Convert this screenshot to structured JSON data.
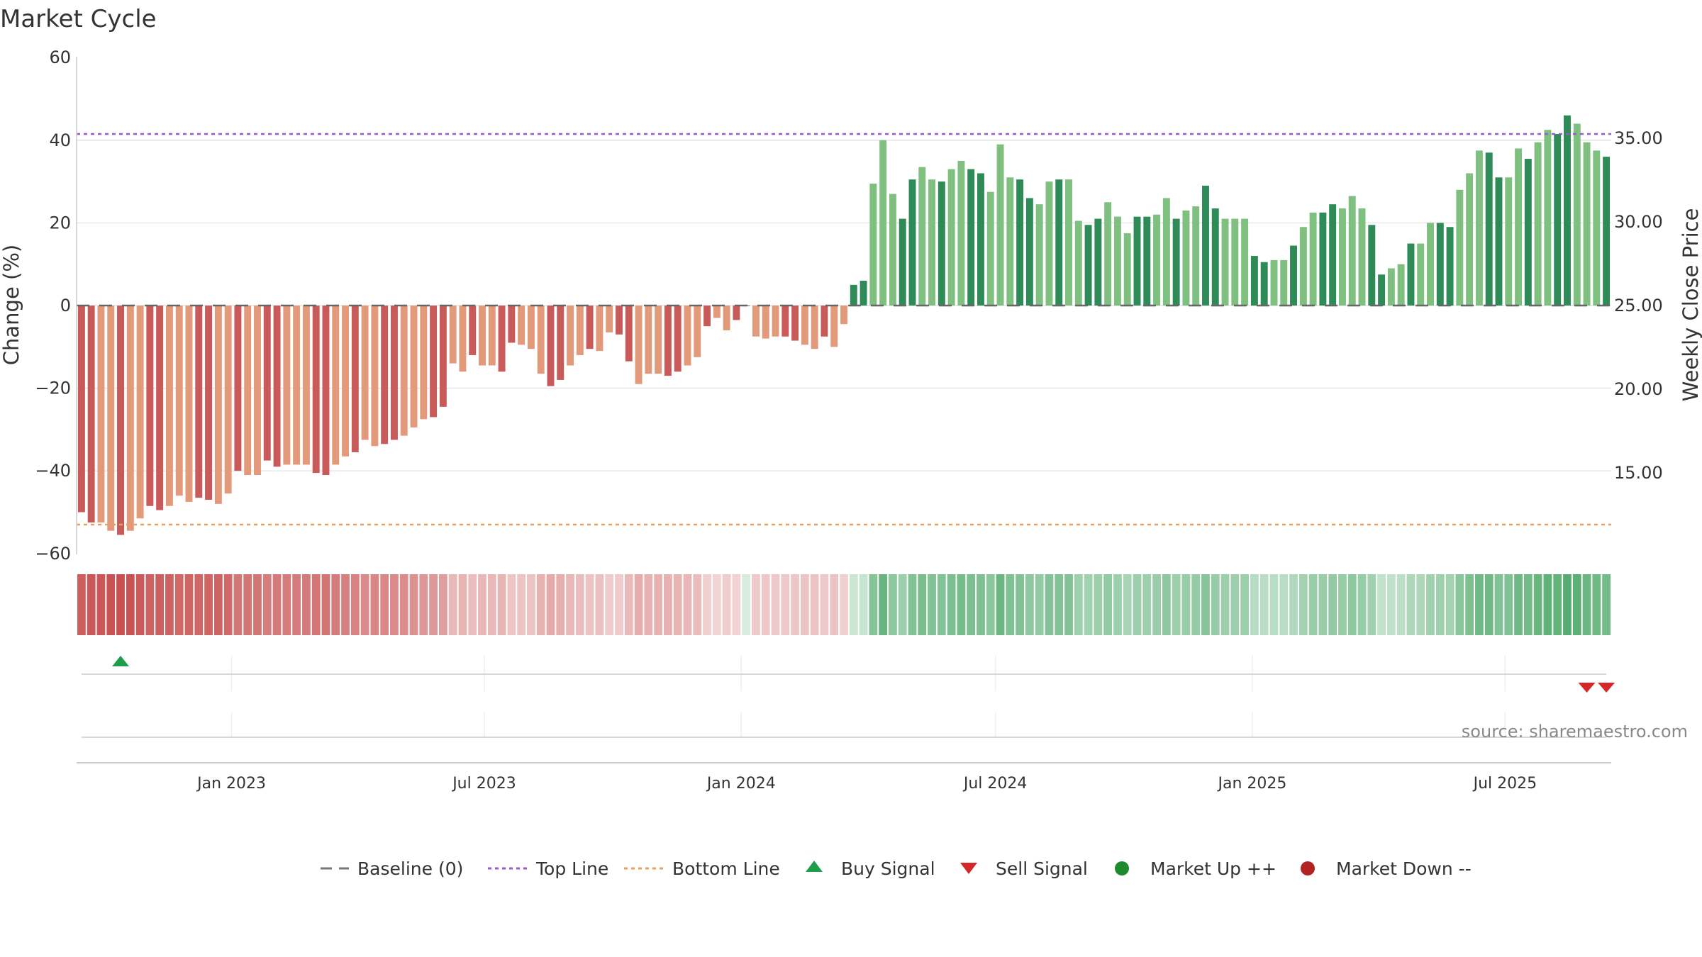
{
  "chart_data": {
    "type": "bar",
    "title": "Market Cycle",
    "y_left_label": "Change (%)",
    "y_right_label": "Weekly Close Price",
    "y_left_ticks": [
      "60",
      "40",
      "20",
      "0",
      "−20",
      "−40",
      "−60"
    ],
    "y_right_ticks": [
      "35.00",
      "30.00",
      "25.00",
      "20.00",
      "15.00"
    ],
    "ylim_left": [
      -60,
      60
    ],
    "x_ticks": [
      "Jan 2023",
      "Jul 2023",
      "Jan 2024",
      "Jul 2024",
      "Jan 2025",
      "Jul 2025"
    ],
    "top_line": 41.5,
    "bottom_line": -53,
    "grid": true,
    "start_week": "2022-09-12",
    "values": [
      -50,
      -52.5,
      -52.5,
      -54.5,
      -55.5,
      -54.5,
      -51.5,
      -48.5,
      -49.5,
      -48.5,
      -46,
      -47.5,
      -46.5,
      -47,
      -48,
      -45.5,
      -40,
      -41,
      -41,
      -37.5,
      -39,
      -38.5,
      -38.5,
      -38.5,
      -40.5,
      -41,
      -38.5,
      -36.5,
      -35.5,
      -32.5,
      -34,
      -33.5,
      -32.5,
      -31.5,
      -29.5,
      -27.5,
      -27,
      -24.5,
      -14,
      -16,
      -12,
      -14.5,
      -14.5,
      -16,
      -9,
      -9.5,
      -10.5,
      -16.5,
      -19.5,
      -18,
      -14.5,
      -12,
      -10.5,
      -11,
      -6.5,
      -7,
      -13.5,
      -19,
      -16.5,
      -16.5,
      -17,
      -16,
      -14.5,
      -12.5,
      -5,
      -3,
      -6,
      -3.5,
      0,
      -7.5,
      -8,
      -7.5,
      -7.5,
      -8.5,
      -9.5,
      -10.5,
      -7.5,
      -10,
      -4.5,
      5,
      6,
      29.5,
      40,
      27,
      21,
      30.5,
      33.5,
      30.5,
      30,
      33,
      35,
      33,
      32,
      27.5,
      39,
      31,
      30.5,
      26,
      24.5,
      30,
      30.5,
      30.5,
      20.5,
      19.5,
      21,
      25,
      21.5,
      17.5,
      21.5,
      21.5,
      22,
      26,
      21,
      23,
      24,
      29,
      23.5,
      21,
      21,
      21,
      12,
      10.5,
      11,
      11,
      14.5,
      19,
      22.5,
      22.5,
      24.5,
      23.5,
      26.5,
      23.5,
      19.5,
      7.5,
      9,
      10,
      15,
      15,
      20,
      20,
      19,
      28,
      32,
      37.5,
      37,
      31,
      31,
      38,
      35.5,
      39.5,
      42.5,
      41.5,
      46,
      44,
      39.5,
      37.5,
      36
    ],
    "heat_strip": "relative change intensity per week",
    "signals": {
      "buy": [
        {
          "date": "2022-10-10",
          "label": "Buy Signal"
        }
      ],
      "sell": [
        {
          "date": "2025-08-25",
          "label": "Sell Signal"
        },
        {
          "date": "2025-09-08",
          "label": "Sell Signal"
        }
      ]
    },
    "legend": [
      {
        "label": "Baseline (0)",
        "kind": "dash",
        "color": "#777777"
      },
      {
        "label": "Top Line",
        "kind": "dot",
        "color": "#9b59d0"
      },
      {
        "label": "Bottom Line",
        "kind": "dot",
        "color": "#e8a060"
      },
      {
        "label": "Buy Signal",
        "kind": "up",
        "color": "#1e9e4a"
      },
      {
        "label": "Sell Signal",
        "kind": "down",
        "color": "#d62728"
      },
      {
        "label": "Market Up ++",
        "kind": "circle",
        "color": "#1e8a2e"
      },
      {
        "label": "Market Down --",
        "kind": "circle",
        "color": "#b22222"
      }
    ],
    "colors": {
      "neg_dark": "#c85a5a",
      "neg_light": "#e39a7a",
      "pos_dark": "#2e8b57",
      "pos_light": "#7fbf7f",
      "top_line": "#9b59d0",
      "bottom_line": "#e8a060"
    }
  },
  "source": "source: sharemaestro.com"
}
